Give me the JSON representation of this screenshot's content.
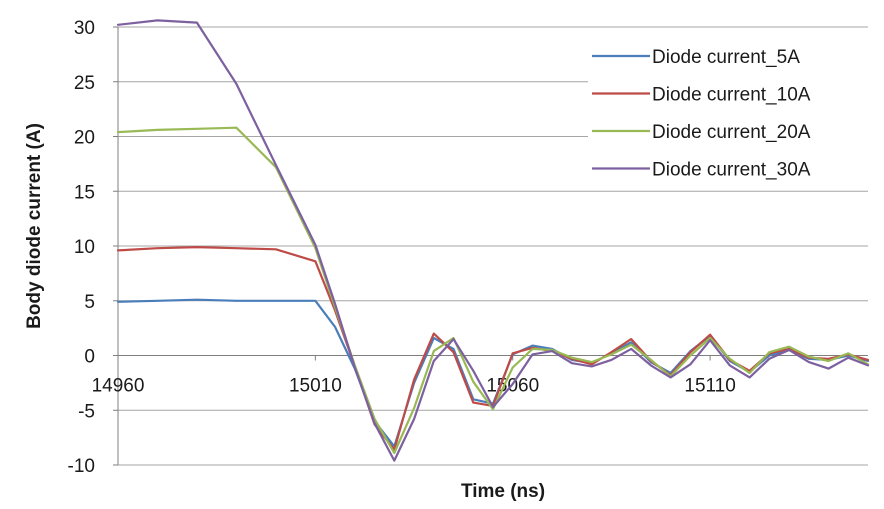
{
  "chart_data": {
    "type": "line",
    "title": "",
    "xlabel": "Time (ns)",
    "ylabel": "Body diode current (A)",
    "xlim": [
      14960,
      15150
    ],
    "ylim": [
      -10,
      30
    ],
    "x_ticks": [
      14960,
      15010,
      15060,
      15110
    ],
    "x_tick_labels": [
      "14960",
      "15010",
      "15060",
      "15110"
    ],
    "y_ticks": [
      30,
      25,
      20,
      15,
      10,
      5,
      0,
      -5,
      -10
    ],
    "y_tick_labels": [
      "30",
      "25",
      "20",
      "15",
      "10",
      "5",
      "0",
      "-5",
      "-10"
    ],
    "grid": "horizontal",
    "legend_position": "top-right",
    "x": [
      14960,
      14970,
      14980,
      14990,
      15000,
      15010,
      15015,
      15020,
      15025,
      15030,
      15035,
      15040,
      15045,
      15050,
      15055,
      15060,
      15065,
      15070,
      15075,
      15080,
      15085,
      15090,
      15095,
      15100,
      15105,
      15110,
      15115,
      15120,
      15125,
      15130,
      15135,
      15140,
      15145,
      15150
    ],
    "series": [
      {
        "name": "Diode current_5A",
        "color": "#4a7ebb",
        "values": [
          4.9,
          5.0,
          5.1,
          5.0,
          5.0,
          5.0,
          2.6,
          -1.2,
          -6.0,
          -8.3,
          -2.5,
          1.6,
          0.6,
          -4.0,
          -4.4,
          0.1,
          0.9,
          0.6,
          -0.4,
          -0.7,
          0.2,
          1.2,
          -0.6,
          -1.6,
          0.4,
          1.8,
          -0.5,
          -1.5,
          0.0,
          0.5,
          -0.3,
          -0.4,
          0.0,
          -0.5
        ]
      },
      {
        "name": "Diode current_10A",
        "color": "#be4b48",
        "values": [
          9.6,
          9.8,
          9.9,
          9.8,
          9.7,
          8.6,
          4.1,
          -1.0,
          -6.3,
          -8.6,
          -2.2,
          2.0,
          0.3,
          -4.3,
          -4.6,
          0.2,
          0.7,
          0.4,
          -0.3,
          -0.8,
          0.3,
          1.5,
          -0.5,
          -1.8,
          0.3,
          1.9,
          -0.4,
          -1.4,
          0.2,
          0.6,
          -0.2,
          -0.3,
          0.1,
          -0.4
        ]
      },
      {
        "name": "Diode current_20A",
        "color": "#98b954",
        "values": [
          20.4,
          20.6,
          20.7,
          20.8,
          17.2,
          9.8,
          4.4,
          -0.9,
          -5.8,
          -8.9,
          -4.8,
          0.4,
          1.6,
          -2.4,
          -4.9,
          -1.1,
          0.6,
          0.5,
          -0.2,
          -0.6,
          0.1,
          1.0,
          -0.4,
          -1.9,
          0.0,
          1.6,
          -0.3,
          -1.6,
          0.3,
          0.8,
          -0.1,
          -0.5,
          0.2,
          -0.8
        ]
      },
      {
        "name": "Diode current_30A",
        "color": "#7d60a0",
        "values": [
          30.2,
          30.6,
          30.4,
          24.8,
          17.4,
          10.1,
          4.7,
          -1.1,
          -6.2,
          -9.6,
          -5.8,
          -0.5,
          1.5,
          -1.4,
          -4.7,
          -2.6,
          0.1,
          0.4,
          -0.7,
          -1.0,
          -0.4,
          0.6,
          -0.9,
          -2.0,
          -0.8,
          1.4,
          -0.9,
          -2.0,
          -0.3,
          0.5,
          -0.6,
          -1.2,
          -0.2,
          -0.9
        ]
      }
    ]
  }
}
